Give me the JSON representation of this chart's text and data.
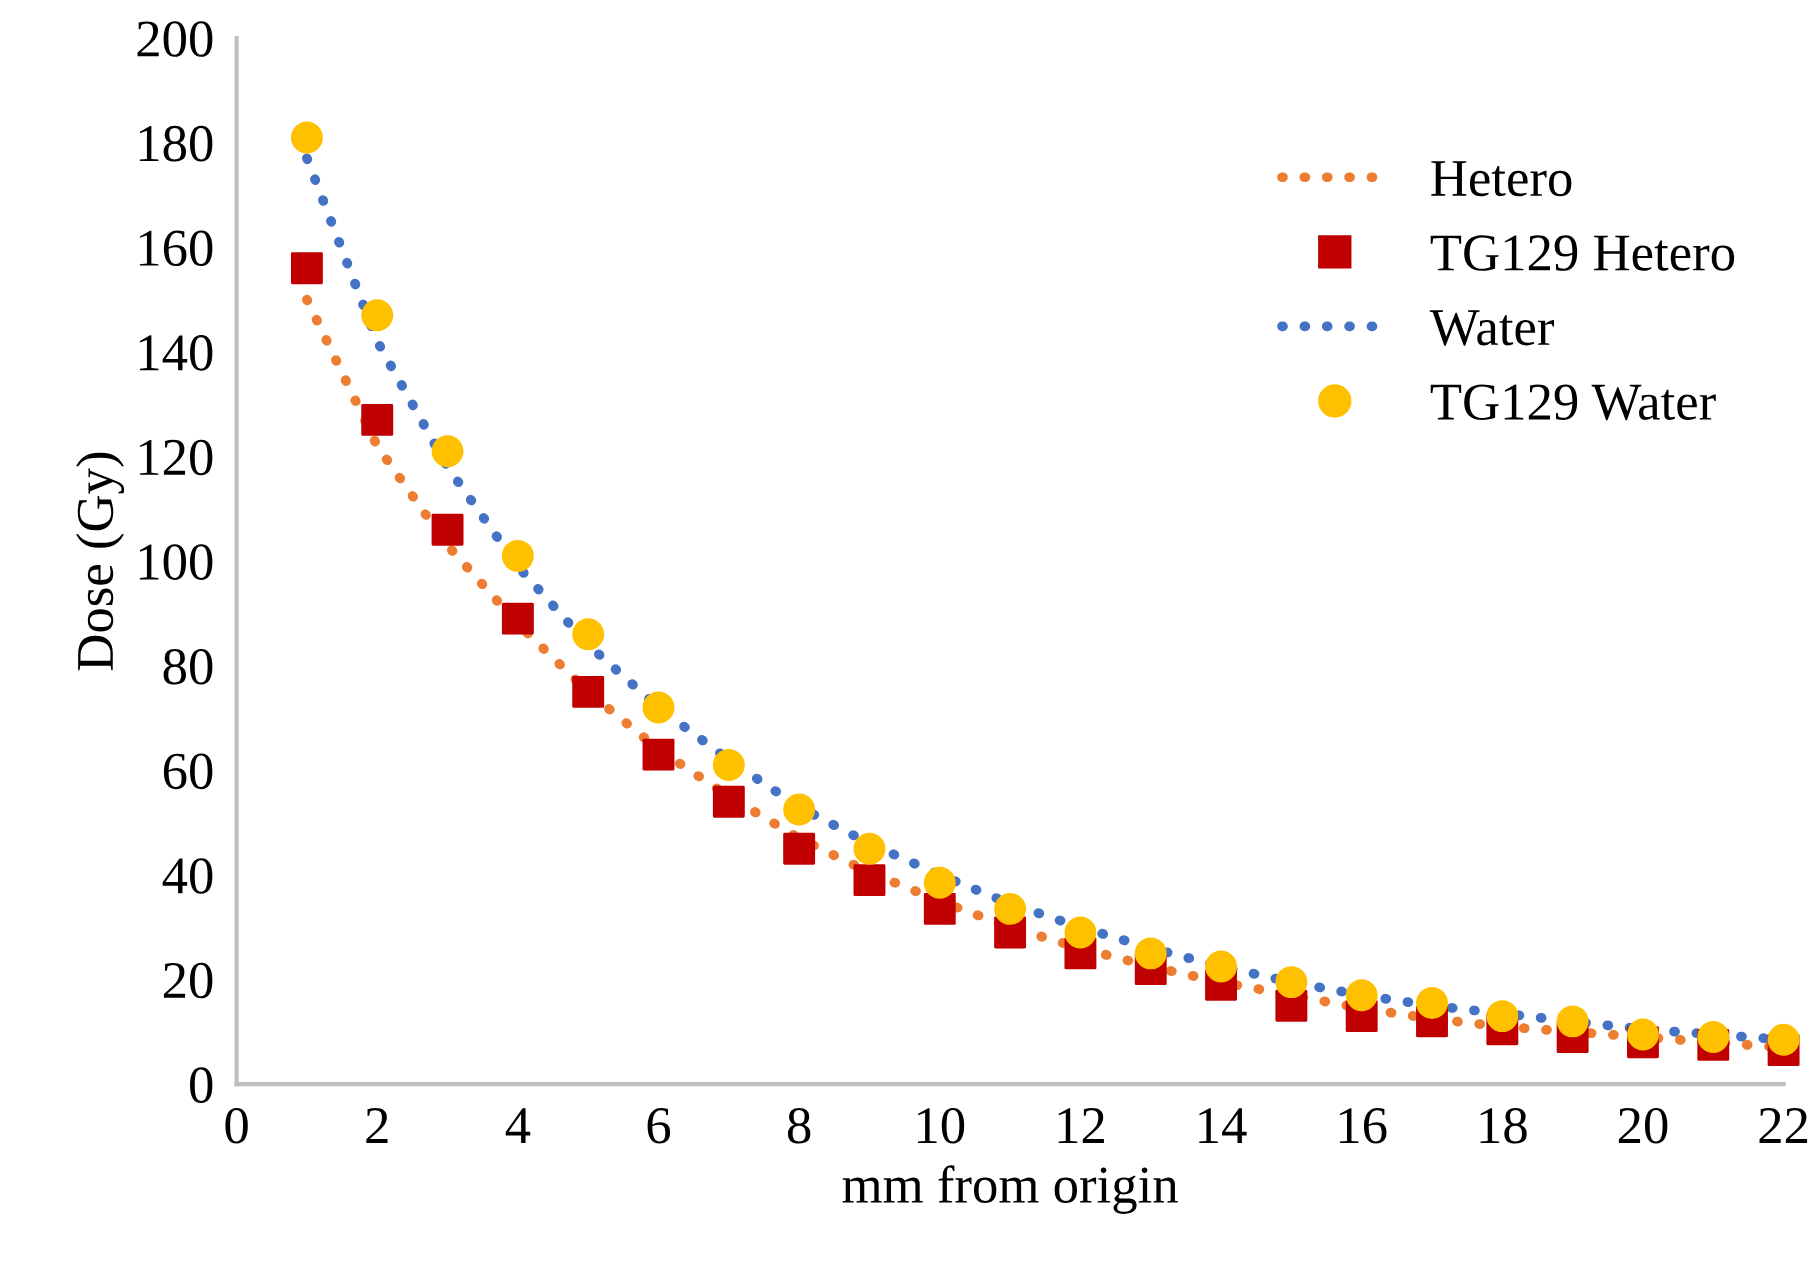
{
  "chart_data": {
    "type": "line",
    "xlabel": "mm from origin",
    "ylabel": "Dose (Gy)",
    "xlim": [
      0,
      22
    ],
    "xticks": [
      0,
      2,
      4,
      6,
      8,
      10,
      12,
      14,
      16,
      18,
      20,
      22
    ],
    "ylim": [
      0,
      200
    ],
    "yticks": [
      0,
      20,
      40,
      60,
      80,
      100,
      120,
      140,
      160,
      180,
      200
    ],
    "grid": false,
    "legend": "top right",
    "x": [
      1,
      2,
      3,
      4,
      5,
      6,
      7,
      8,
      9,
      10,
      11,
      12,
      13,
      14,
      15,
      16,
      17,
      18,
      19,
      20,
      21,
      22
    ],
    "series": [
      {
        "name": "Hetero",
        "line_style": "dotted",
        "marker": "none",
        "color": "#ed7d31",
        "values": [
          150,
          122,
          103,
          88,
          75,
          64,
          55,
          47,
          40.5,
          35,
          30,
          26,
          22.5,
          19.5,
          17,
          14.5,
          12.5,
          11,
          10,
          9,
          8,
          7
        ]
      },
      {
        "name": "TG129 Hetero",
        "type": "scatter",
        "marker": "square",
        "color": "#c00000",
        "values": [
          156,
          127,
          106,
          89,
          75,
          63,
          54,
          45,
          39,
          33.5,
          29,
          25,
          22,
          19,
          15,
          13,
          12,
          10.5,
          9,
          8,
          7.5,
          6.5
        ]
      },
      {
        "name": "Water",
        "line_style": "dotted",
        "marker": "none",
        "color": "#4472c4",
        "values": [
          177,
          142,
          118,
          99,
          84,
          72,
          62,
          53,
          46,
          40,
          34.5,
          30,
          26,
          22.5,
          19.5,
          17,
          15,
          13.5,
          12,
          10.5,
          9.5,
          8.5
        ]
      },
      {
        "name": "TG129 Water",
        "type": "scatter",
        "marker": "circle",
        "color": "#ffc000",
        "values": [
          181,
          147,
          121,
          101,
          86,
          72,
          61,
          52.5,
          45,
          38.5,
          33.5,
          29,
          25,
          22.5,
          19.5,
          17,
          15.5,
          13,
          12,
          9.5,
          9,
          8.5
        ]
      }
    ]
  }
}
